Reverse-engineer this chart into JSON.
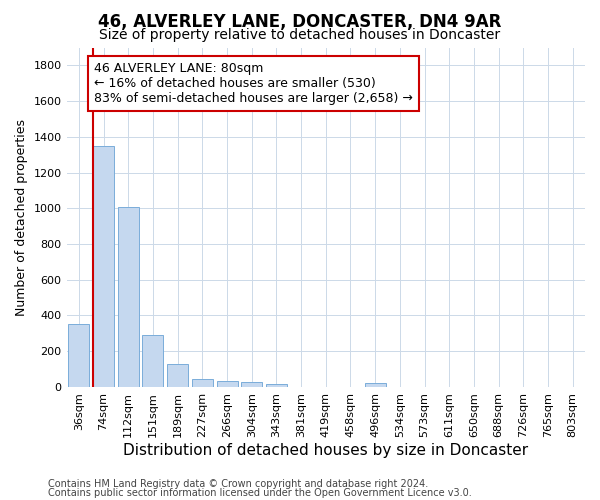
{
  "title": "46, ALVERLEY LANE, DONCASTER, DN4 9AR",
  "subtitle": "Size of property relative to detached houses in Doncaster",
  "xlabel": "Distribution of detached houses by size in Doncaster",
  "ylabel": "Number of detached properties",
  "categories": [
    "36sqm",
    "74sqm",
    "112sqm",
    "151sqm",
    "189sqm",
    "227sqm",
    "266sqm",
    "304sqm",
    "343sqm",
    "381sqm",
    "419sqm",
    "458sqm",
    "496sqm",
    "534sqm",
    "573sqm",
    "611sqm",
    "650sqm",
    "688sqm",
    "726sqm",
    "765sqm",
    "803sqm"
  ],
  "values": [
    355,
    1350,
    1010,
    290,
    130,
    42,
    35,
    25,
    17,
    0,
    0,
    0,
    20,
    0,
    0,
    0,
    0,
    0,
    0,
    0,
    0
  ],
  "bar_color": "#c5d8ef",
  "bar_edge_color": "#7aadda",
  "property_line_color": "#cc0000",
  "annotation_text": "46 ALVERLEY LANE: 80sqm\n← 16% of detached houses are smaller (530)\n83% of semi-detached houses are larger (2,658) →",
  "annotation_box_color": "#cc0000",
  "ylim": [
    0,
    1900
  ],
  "yticks": [
    0,
    200,
    400,
    600,
    800,
    1000,
    1200,
    1400,
    1600,
    1800
  ],
  "footnote1": "Contains HM Land Registry data © Crown copyright and database right 2024.",
  "footnote2": "Contains public sector information licensed under the Open Government Licence v3.0.",
  "background_color": "#ffffff",
  "grid_color": "#ccd9e8",
  "title_fontsize": 12,
  "subtitle_fontsize": 10,
  "xlabel_fontsize": 11,
  "ylabel_fontsize": 9,
  "tick_fontsize": 8,
  "annotation_fontsize": 9,
  "footnote_fontsize": 7
}
